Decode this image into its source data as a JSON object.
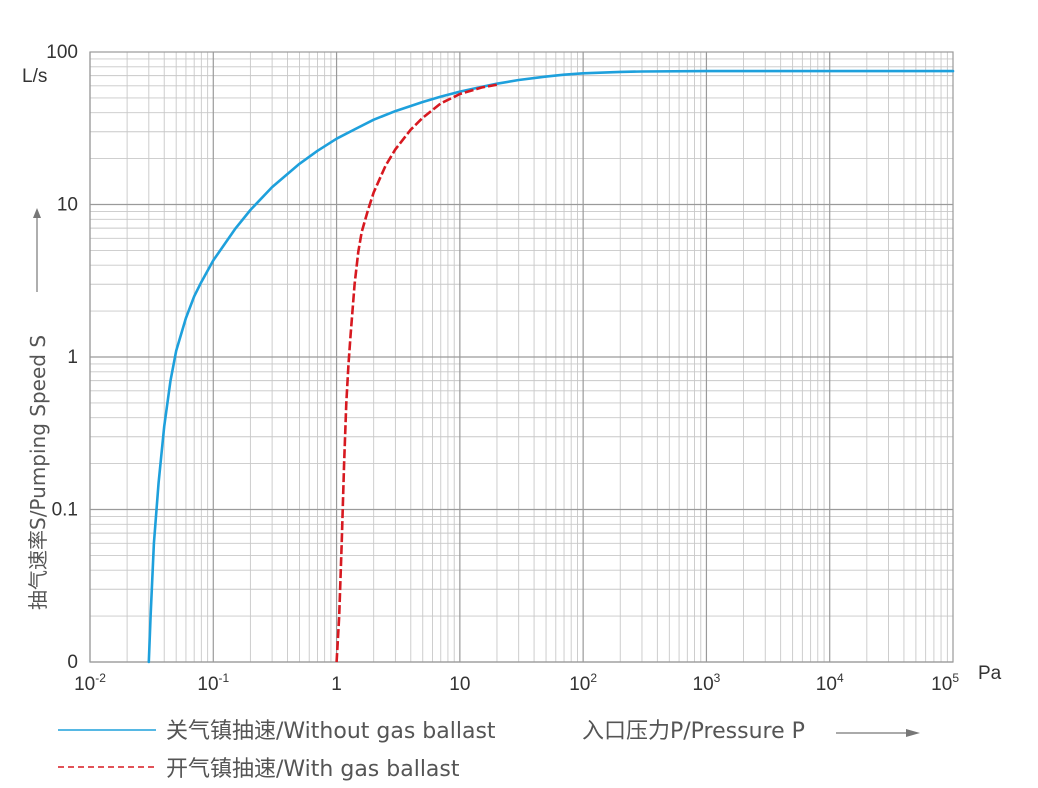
{
  "chart_data": {
    "type": "line",
    "x_scale": "log",
    "y_scale": "log",
    "xlim": [
      0.01,
      100000
    ],
    "ylim": [
      0,
      100
    ],
    "grid": true,
    "xlabel": "入口压力P/Pressure P",
    "ylabel": "抽气速率S/Pumping Speed S",
    "x_unit": "Pa",
    "y_unit": "L/s",
    "x_ticks": [
      {
        "value": 0.01,
        "base": "10",
        "exp": "-2"
      },
      {
        "value": 0.1,
        "base": "10",
        "exp": "-1"
      },
      {
        "value": 1,
        "base": "1",
        "exp": ""
      },
      {
        "value": 10,
        "base": "10",
        "exp": ""
      },
      {
        "value": 100,
        "base": "10",
        "exp": "2"
      },
      {
        "value": 1000,
        "base": "10",
        "exp": "3"
      },
      {
        "value": 10000,
        "base": "10",
        "exp": "4"
      },
      {
        "value": 100000,
        "base": "10",
        "exp": "5"
      }
    ],
    "y_ticks": [
      "0",
      "0.1",
      "1",
      "10",
      "100"
    ],
    "legend": [
      {
        "label": "关气镇抽速/Without gas ballast",
        "color": "#1ea0dc",
        "style": "solid"
      },
      {
        "label": "开气镇抽速/With gas ballast",
        "color": "#d71920",
        "style": "dashed"
      }
    ],
    "series": [
      {
        "name": "关气镇抽速/Without gas ballast",
        "color": "#1ea0dc",
        "style": "solid",
        "points": [
          [
            0.03,
            0
          ],
          [
            0.031,
            0.02
          ],
          [
            0.033,
            0.06
          ],
          [
            0.036,
            0.15
          ],
          [
            0.04,
            0.35
          ],
          [
            0.045,
            0.7
          ],
          [
            0.05,
            1.1
          ],
          [
            0.06,
            1.8
          ],
          [
            0.07,
            2.5
          ],
          [
            0.08,
            3.1
          ],
          [
            0.1,
            4.3
          ],
          [
            0.15,
            6.9
          ],
          [
            0.2,
            9.2
          ],
          [
            0.3,
            13
          ],
          [
            0.5,
            18.5
          ],
          [
            0.7,
            22.5
          ],
          [
            1,
            27
          ],
          [
            1.5,
            32
          ],
          [
            2,
            36
          ],
          [
            3,
            41
          ],
          [
            5,
            47
          ],
          [
            7,
            51
          ],
          [
            10,
            55
          ],
          [
            15,
            59
          ],
          [
            20,
            62
          ],
          [
            30,
            65.5
          ],
          [
            50,
            69
          ],
          [
            70,
            71
          ],
          [
            100,
            72.5
          ],
          [
            200,
            74
          ],
          [
            300,
            74.5
          ],
          [
            1000,
            75
          ],
          [
            100000,
            75
          ]
        ]
      },
      {
        "name": "开气镇抽速/With gas ballast",
        "color": "#d71920",
        "style": "dashed",
        "points": [
          [
            1,
            0
          ],
          [
            1.05,
            0.02
          ],
          [
            1.1,
            0.06
          ],
          [
            1.15,
            0.2
          ],
          [
            1.2,
            0.5
          ],
          [
            1.25,
            0.9
          ],
          [
            1.3,
            1.4
          ],
          [
            1.4,
            3
          ],
          [
            1.5,
            4.9
          ],
          [
            1.6,
            6.6
          ],
          [
            1.8,
            9.2
          ],
          [
            2,
            12
          ],
          [
            2.5,
            18
          ],
          [
            3,
            23
          ],
          [
            4,
            31
          ],
          [
            5,
            37
          ],
          [
            7,
            46
          ],
          [
            10,
            53
          ],
          [
            15,
            58.5
          ],
          [
            20,
            61
          ]
        ]
      }
    ]
  }
}
